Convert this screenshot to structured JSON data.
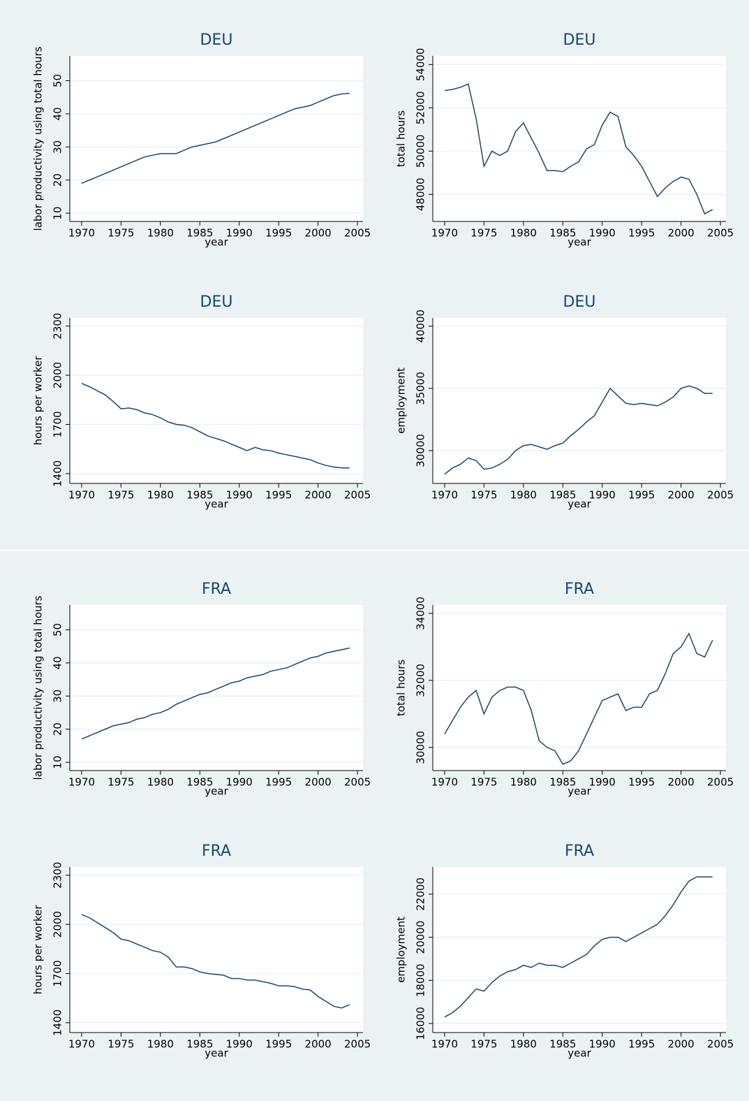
{
  "chart_data": [
    {
      "type": "line",
      "title": "DEU",
      "x_label": "year",
      "y_label": "labor productivity using total hours",
      "color": "#1a476f",
      "grid": true,
      "x": [
        1970,
        1971,
        1972,
        1973,
        1974,
        1975,
        1976,
        1977,
        1978,
        1979,
        1980,
        1981,
        1982,
        1983,
        1984,
        1985,
        1986,
        1987,
        1988,
        1989,
        1990,
        1991,
        1992,
        1993,
        1994,
        1995,
        1996,
        1997,
        1998,
        1999,
        2000,
        2001,
        2002,
        2003,
        2004
      ],
      "values": [
        19,
        20,
        21,
        22,
        23,
        24,
        25,
        26,
        27,
        27.5,
        28,
        28,
        28,
        29,
        30,
        30.5,
        31,
        31.5,
        32.5,
        33.5,
        34.5,
        35.5,
        36.5,
        37.5,
        38.5,
        39.5,
        40.5,
        41.5,
        42,
        42.5,
        43.5,
        44.5,
        45.5,
        46,
        46.2
      ],
      "xlim": [
        1968.5,
        2005.7
      ],
      "ylim": [
        7.5,
        57.5
      ],
      "xticks": [
        1970,
        1975,
        1980,
        1985,
        1990,
        1995,
        2000,
        2005
      ],
      "yticks": [
        10,
        20,
        30,
        40,
        50
      ]
    },
    {
      "type": "line",
      "title": "DEU",
      "x_label": "year",
      "y_label": "total hours",
      "color": "#1a476f",
      "grid": true,
      "x": [
        1970,
        1971,
        1972,
        1973,
        1974,
        1975,
        1976,
        1977,
        1978,
        1979,
        1980,
        1981,
        1982,
        1983,
        1984,
        1985,
        1986,
        1987,
        1988,
        1989,
        1990,
        1991,
        1992,
        1993,
        1994,
        1995,
        1996,
        1997,
        1998,
        1999,
        2000,
        2001,
        2002,
        2003,
        2004
      ],
      "values": [
        52800,
        52850,
        52950,
        53100,
        51500,
        49300,
        50000,
        49800,
        50000,
        50900,
        51300,
        50600,
        49900,
        49100,
        49100,
        49050,
        49300,
        49500,
        50100,
        50300,
        51200,
        51800,
        51600,
        50200,
        49800,
        49300,
        48600,
        47900,
        48300,
        48600,
        48800,
        48700,
        48000,
        47100,
        47300
      ],
      "xlim": [
        1968.5,
        2005.7
      ],
      "ylim": [
        46750,
        54400
      ],
      "xticks": [
        1970,
        1975,
        1980,
        1985,
        1990,
        1995,
        2000,
        2005
      ],
      "yticks": [
        48000,
        50000,
        52000,
        54000
      ]
    },
    {
      "type": "line",
      "title": "DEU",
      "x_label": "year",
      "y_label": "hours per worker",
      "color": "#1a476f",
      "grid": true,
      "x": [
        1970,
        1971,
        1972,
        1973,
        1974,
        1975,
        1976,
        1977,
        1978,
        1979,
        1980,
        1981,
        1982,
        1983,
        1984,
        1985,
        1986,
        1987,
        1988,
        1989,
        1990,
        1991,
        1992,
        1993,
        1994,
        1995,
        1996,
        1997,
        1998,
        1999,
        2000,
        2001,
        2002,
        2003,
        2004
      ],
      "values": [
        1950,
        1930,
        1905,
        1880,
        1840,
        1795,
        1800,
        1790,
        1770,
        1760,
        1740,
        1715,
        1700,
        1695,
        1680,
        1655,
        1630,
        1615,
        1600,
        1580,
        1560,
        1540,
        1560,
        1545,
        1540,
        1525,
        1515,
        1505,
        1495,
        1485,
        1465,
        1450,
        1440,
        1435,
        1435
      ],
      "xlim": [
        1968.5,
        2005.7
      ],
      "ylim": [
        1340,
        2350
      ],
      "xticks": [
        1970,
        1975,
        1980,
        1985,
        1990,
        1995,
        2000,
        2005
      ],
      "yticks": [
        1400,
        1700,
        2000,
        2300
      ]
    },
    {
      "type": "line",
      "title": "DEU",
      "x_label": "year",
      "y_label": "employment",
      "color": "#1a476f",
      "grid": true,
      "x": [
        1970,
        1971,
        1972,
        1973,
        1974,
        1975,
        1976,
        1977,
        1978,
        1979,
        1980,
        1981,
        1982,
        1983,
        1984,
        1985,
        1986,
        1987,
        1988,
        1989,
        1990,
        1991,
        1992,
        1993,
        1994,
        1995,
        1996,
        1997,
        1998,
        1999,
        2000,
        2001,
        2002,
        2003,
        2004
      ],
      "values": [
        28100,
        28600,
        28900,
        29400,
        29200,
        28500,
        28600,
        28900,
        29300,
        30000,
        30400,
        30500,
        30300,
        30100,
        30400,
        30600,
        31200,
        31700,
        32300,
        32800,
        33900,
        35000,
        34400,
        33800,
        33700,
        33800,
        33700,
        33600,
        33900,
        34300,
        35000,
        35200,
        35000,
        34600,
        34600
      ],
      "xlim": [
        1968.5,
        2005.7
      ],
      "ylim": [
        27360,
        40670
      ],
      "xticks": [
        1970,
        1975,
        1980,
        1985,
        1990,
        1995,
        2000,
        2005
      ],
      "yticks": [
        30000,
        35000,
        40000
      ]
    },
    {
      "type": "line",
      "title": "FRA",
      "x_label": "year",
      "y_label": "labor productivity using total hours",
      "color": "#1a476f",
      "grid": true,
      "x": [
        1970,
        1971,
        1972,
        1973,
        1974,
        1975,
        1976,
        1977,
        1978,
        1979,
        1980,
        1981,
        1982,
        1983,
        1984,
        1985,
        1986,
        1987,
        1988,
        1989,
        1990,
        1991,
        1992,
        1993,
        1994,
        1995,
        1996,
        1997,
        1998,
        1999,
        2000,
        2001,
        2002,
        2003,
        2004
      ],
      "values": [
        17,
        18,
        19,
        20,
        21,
        21.5,
        22,
        23,
        23.5,
        24.5,
        25,
        26,
        27.5,
        28.5,
        29.5,
        30.5,
        31,
        32,
        33,
        34,
        34.5,
        35.5,
        36,
        36.5,
        37.5,
        38,
        38.5,
        39.5,
        40.5,
        41.5,
        42,
        43,
        43.5,
        44,
        44.5
      ],
      "xlim": [
        1968.5,
        2005.7
      ],
      "ylim": [
        7.5,
        57.5
      ],
      "xticks": [
        1970,
        1975,
        1980,
        1985,
        1990,
        1995,
        2000,
        2005
      ],
      "yticks": [
        10,
        20,
        30,
        40,
        50
      ]
    },
    {
      "type": "line",
      "title": "FRA",
      "x_label": "year",
      "y_label": "total hours",
      "color": "#1a476f",
      "grid": true,
      "x": [
        1970,
        1971,
        1972,
        1973,
        1974,
        1975,
        1976,
        1977,
        1978,
        1979,
        1980,
        1981,
        1982,
        1983,
        1984,
        1985,
        1986,
        1987,
        1988,
        1989,
        1990,
        1991,
        1992,
        1993,
        1994,
        1995,
        1996,
        1997,
        1998,
        1999,
        2000,
        2001,
        2002,
        2003,
        2004
      ],
      "values": [
        30400,
        30800,
        31200,
        31500,
        31700,
        31000,
        31500,
        31700,
        31800,
        31800,
        31700,
        31100,
        30200,
        30000,
        29900,
        29500,
        29600,
        29900,
        30400,
        30900,
        31400,
        31500,
        31600,
        31100,
        31200,
        31200,
        31600,
        31700,
        32200,
        32800,
        33000,
        33400,
        32800,
        32700,
        33200
      ],
      "xlim": [
        1968.5,
        2005.7
      ],
      "ylim": [
        29310,
        34250
      ],
      "xticks": [
        1970,
        1975,
        1980,
        1985,
        1990,
        1995,
        2000,
        2005
      ],
      "yticks": [
        30000,
        32000,
        34000
      ]
    },
    {
      "type": "line",
      "title": "FRA",
      "x_label": "year",
      "y_label": "hours per worker",
      "color": "#1a476f",
      "grid": true,
      "x": [
        1970,
        1971,
        1972,
        1973,
        1974,
        1975,
        1976,
        1977,
        1978,
        1979,
        1980,
        1981,
        1982,
        1983,
        1984,
        1985,
        1986,
        1987,
        1988,
        1989,
        1990,
        1991,
        1992,
        1993,
        1994,
        1995,
        1996,
        1997,
        1998,
        1999,
        2000,
        2001,
        2002,
        2003,
        2004
      ],
      "values": [
        2060,
        2040,
        2010,
        1980,
        1950,
        1910,
        1900,
        1880,
        1860,
        1840,
        1830,
        1800,
        1740,
        1740,
        1730,
        1710,
        1700,
        1695,
        1690,
        1670,
        1670,
        1660,
        1660,
        1650,
        1640,
        1625,
        1625,
        1620,
        1605,
        1600,
        1560,
        1530,
        1500,
        1490,
        1510
      ],
      "xlim": [
        1968.5,
        2005.7
      ],
      "ylim": [
        1340,
        2350
      ],
      "xticks": [
        1970,
        1975,
        1980,
        1985,
        1990,
        1995,
        2000,
        2005
      ],
      "yticks": [
        1400,
        1700,
        2000,
        2300
      ]
    },
    {
      "type": "line",
      "title": "FRA",
      "x_label": "year",
      "y_label": "employment",
      "color": "#1a476f",
      "grid": true,
      "x": [
        1970,
        1971,
        1972,
        1973,
        1974,
        1975,
        1976,
        1977,
        1978,
        1979,
        1980,
        1981,
        1982,
        1983,
        1984,
        1985,
        1986,
        1987,
        1988,
        1989,
        1990,
        1991,
        1992,
        1993,
        1994,
        1995,
        1996,
        1997,
        1998,
        1999,
        2000,
        2001,
        2002,
        2003,
        2004
      ],
      "values": [
        16300,
        16500,
        16800,
        17200,
        17600,
        17500,
        17900,
        18200,
        18400,
        18500,
        18700,
        18600,
        18800,
        18700,
        18700,
        18600,
        18800,
        19000,
        19200,
        19600,
        19900,
        20000,
        20000,
        19800,
        20000,
        20200,
        20400,
        20600,
        21000,
        21500,
        22100,
        22600,
        22800,
        22800,
        22800
      ],
      "xlim": [
        1968.5,
        2005.7
      ],
      "ylim": [
        15580,
        23260
      ],
      "xticks": [
        1970,
        1975,
        1980,
        1985,
        1990,
        1995,
        2000,
        2005
      ],
      "yticks": [
        16000,
        18000,
        20000,
        22000
      ]
    }
  ]
}
